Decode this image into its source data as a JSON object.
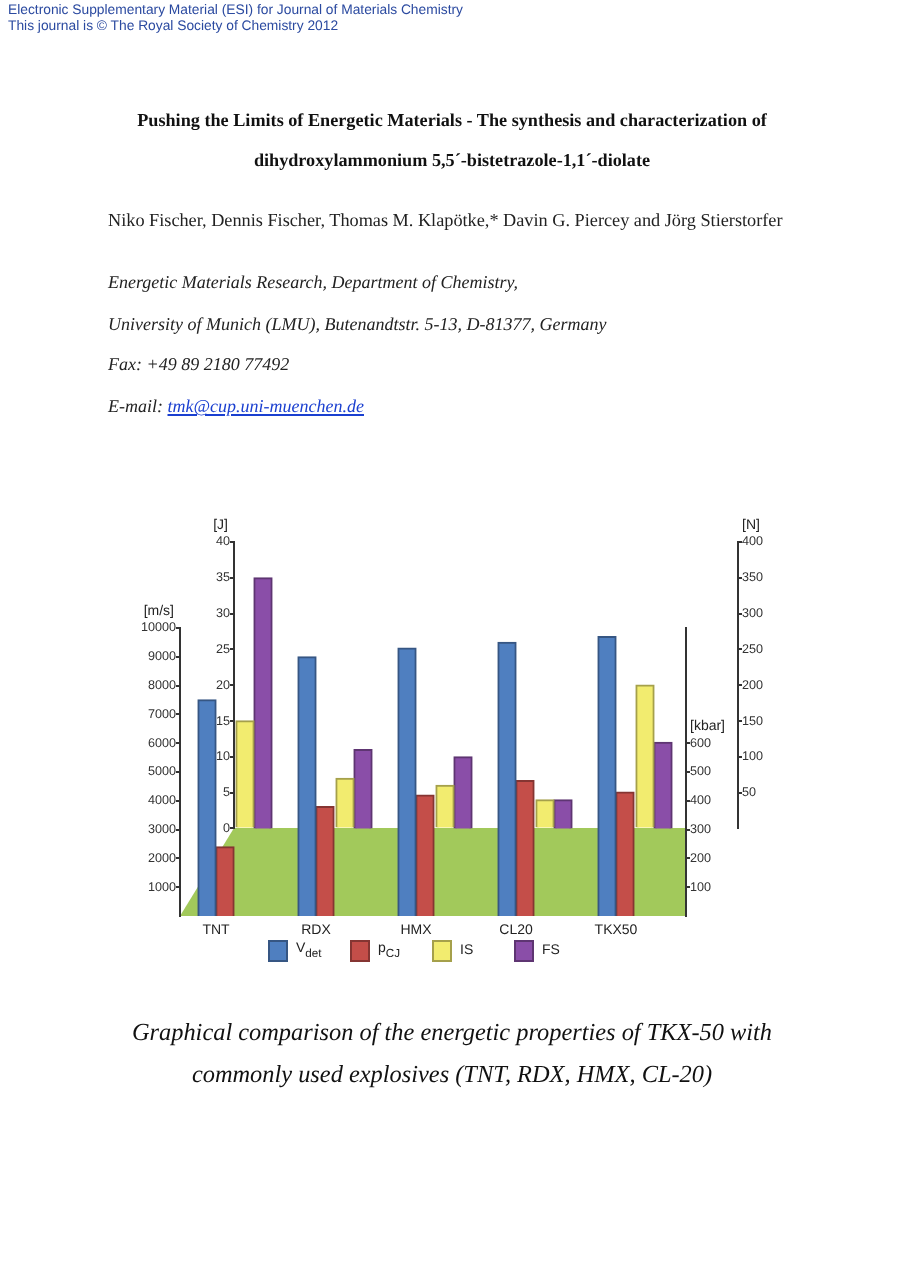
{
  "chart_data": [
    {
      "type": "bar",
      "title": "Pushing the Limits of Energetic Materials - The synthesis and characterization of dihydroxylammonium 5,5´-bistetrazole-1,1´-diolate",
      "categories": [
        "TNT",
        "RDX",
        "HMX",
        "CL20",
        "TKX50"
      ],
      "series": [
        {
          "name": "V$_{det}$",
          "color": "#4f7fc0",
          "values": [
            7500,
            9000,
            9300,
            9500,
            9700
          ]
        },
        {
          "name": "p$_{CJ}$",
          "color": "#c44e49",
          "values": [
            240,
            380,
            420,
            470,
            430
          ],
          "axis": "y2"
        }
      ],
      "ylabel": "[m/s]",
      "y2label": "[kbar]",
      "ylim": [
        0,
        10000
      ],
      "yticks": [
        1000,
        2000,
        3000,
        4000,
        5000,
        6000,
        7000,
        8000,
        9000,
        10000
      ],
      "y2lim": [
        0,
        1000
      ],
      "y2ticks": [
        100,
        200,
        300,
        400,
        500,
        600
      ],
      "legend": "bottom",
      "annotations": [
        "Electronic Supplementary Material (ESI) for Journal of Materials Chemistry",
        "This journal is © The Royal Society of Chemistry 2012",
        "Niko Fischer, Dennis Fischer, Thomas M. Klapötke,* Davin G. Piercey and Jörg Stierstorfer",
        "Energetic Materials Research, Department of Chemistry,",
        "University of Munich (LMU), Butenandtstr. 5-13, D-81377, Germany",
        "Fax: +49 89 2180 77492",
        "E-mail:",
        "tmk@cup.uni-muenchen.de",
        "Graphical comparison of the energetic properties of TKX-50 with commonly used explosives (TNT, RDX, HMX, CL-20)"
      ]
    },
    {
      "type": "bar",
      "categories": [
        null,
        null,
        null,
        null,
        null
      ],
      "series": [
        {
          "name": "IS",
          "color": "#f2ec6f",
          "values": [
            15,
            7,
            6,
            4,
            20
          ]
        },
        {
          "name": "FS",
          "color": "#8a4ea8",
          "values": [
            350,
            110,
            100,
            40,
            120
          ],
          "axis": "y2"
        }
      ],
      "ylabel": "[J]",
      "y2label": "[N]",
      "ylim": [
        0,
        40
      ],
      "yticks": [
        0,
        5,
        10,
        15,
        20,
        25,
        30,
        35,
        40
      ],
      "y2lim": [
        0,
        400
      ],
      "y2ticks": [
        50,
        100,
        150,
        200,
        250,
        300,
        350,
        400
      ],
      "legend": "bottom"
    }
  ]
}
